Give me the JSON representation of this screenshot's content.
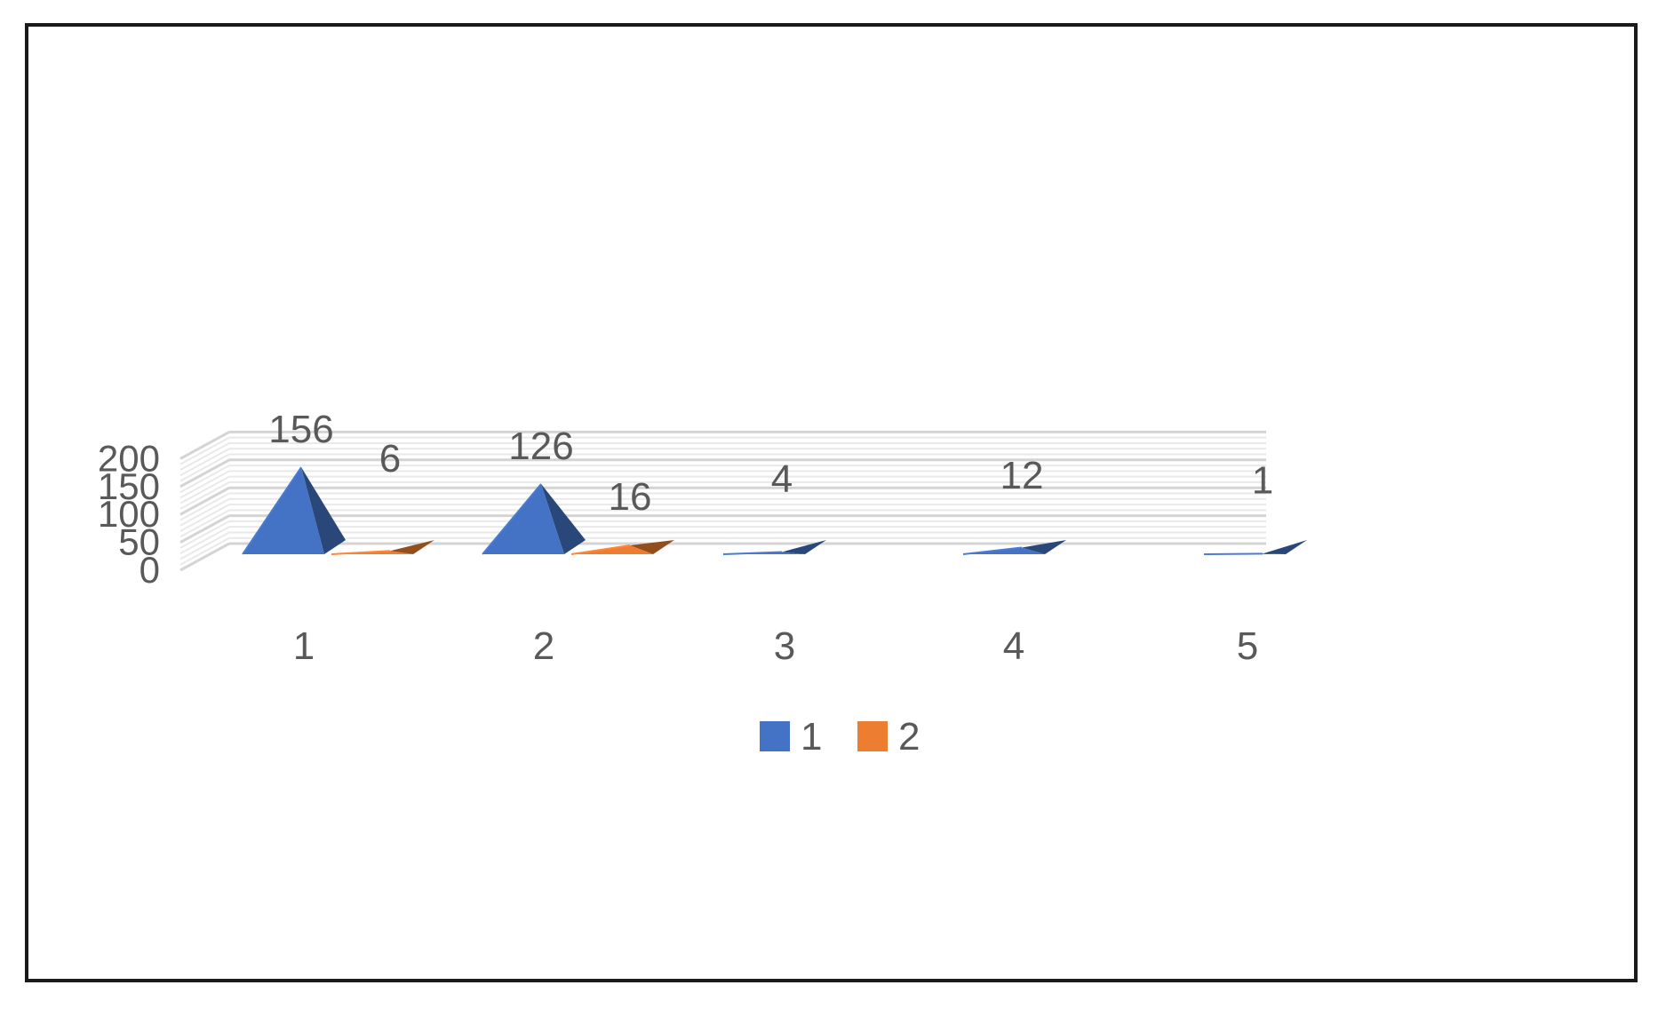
{
  "chart_data": {
    "type": "bar",
    "style": "3d-pyramid",
    "categories": [
      "1",
      "2",
      "3",
      "4",
      "5"
    ],
    "series": [
      {
        "name": "1",
        "color": "#4472c4",
        "values": [
          156,
          126,
          4,
          12,
          1
        ]
      },
      {
        "name": "2",
        "color": "#ed7d31",
        "values": [
          6,
          16,
          null,
          null,
          null
        ]
      }
    ],
    "data_labels": [
      {
        "category": "1",
        "series": "1",
        "text": "156"
      },
      {
        "category": "1",
        "series": "2",
        "text": "6"
      },
      {
        "category": "2",
        "series": "1",
        "text": "126"
      },
      {
        "category": "2",
        "series": "2",
        "text": "16"
      },
      {
        "category": "3",
        "series": "1",
        "text": "4"
      },
      {
        "category": "4",
        "series": "1",
        "text": "12"
      },
      {
        "category": "5",
        "series": "1",
        "text": "1"
      }
    ],
    "y_ticks": [
      "0",
      "50",
      "100",
      "150",
      "200"
    ],
    "ylim": [
      0,
      200
    ],
    "grid": true,
    "legend": "bottom",
    "title": "",
    "xlabel": "",
    "ylabel": ""
  }
}
